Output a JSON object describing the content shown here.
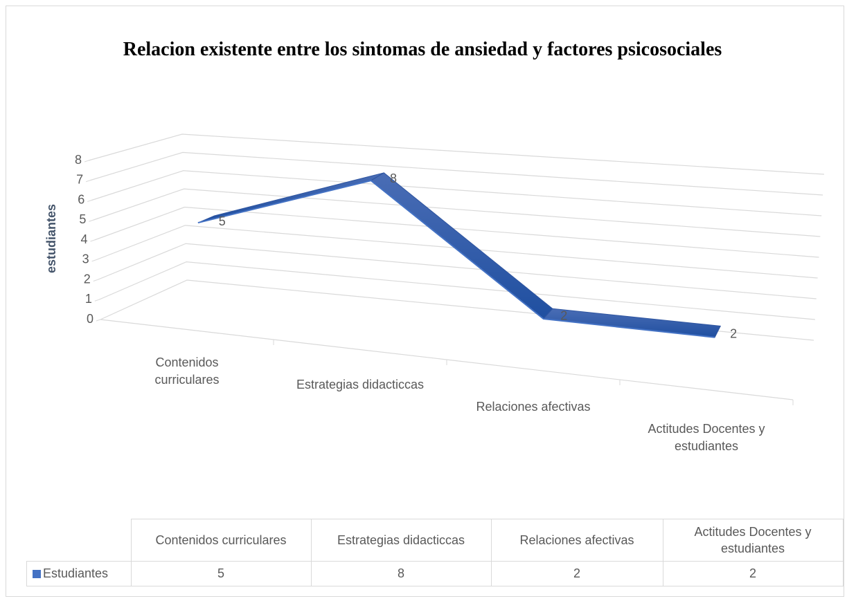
{
  "chart_data": {
    "type": "line",
    "title": "Relacion existente entre los sintomas de ansiedad y factores psicosociales",
    "ylabel": "estudiantes",
    "categories": [
      "Contenidos curriculares",
      "Estrategias didacticcas",
      "Relaciones afectivas",
      "Actitudes Docentes y estudiantes"
    ],
    "series": [
      {
        "name": "Estudiantes",
        "color": "#4472c4",
        "values": [
          5,
          8,
          2,
          2
        ]
      }
    ],
    "ylim": [
      0,
      8
    ],
    "yticks": [
      0,
      1,
      2,
      3,
      4,
      5,
      6,
      7,
      8
    ],
    "grid": true,
    "data_table": true
  }
}
